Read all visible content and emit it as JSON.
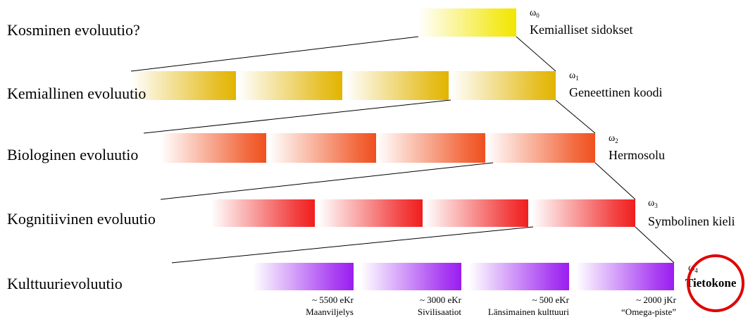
{
  "stages": [
    {
      "label": "Kosminen evoluutio?",
      "omega_base": "ω",
      "omega_sub": "0",
      "point_label": "Kemialliset sidokset",
      "color": "#f2e600",
      "bar_count": 1
    },
    {
      "label": "Kemiallinen evoluutio",
      "omega_base": "ω",
      "omega_sub": "1",
      "point_label": "Geneettinen koodi",
      "color": "#e2b400",
      "bar_count": 4
    },
    {
      "label": "Biologinen evoluutio",
      "omega_base": "ω",
      "omega_sub": "2",
      "point_label": "Hermosolu",
      "color": "#f0501e",
      "bar_count": 4
    },
    {
      "label": "Kognitiivinen evoluutio",
      "omega_base": "ω",
      "omega_sub": "3",
      "point_label": "Symbolinen kieli",
      "color": "#f01e1e",
      "bar_count": 4
    },
    {
      "label": "Kulttuurievoluutio",
      "omega_base": "ω",
      "omega_sub": "4",
      "point_label": "Tietokone",
      "color": "#9a1ef0",
      "bar_count": 4
    }
  ],
  "culture_markers": [
    {
      "date": "~ 5500 eKr",
      "event": "Maanviljelys"
    },
    {
      "date": "~ 3000 eKr",
      "event": "Sivilisaatiot"
    },
    {
      "date": "~ 500 eKr",
      "event": "Länsimainen kulttuuri"
    },
    {
      "date": "~ 2000 jKr",
      "event": "“Omega-piste”"
    }
  ],
  "highlight_color": "#e00000"
}
